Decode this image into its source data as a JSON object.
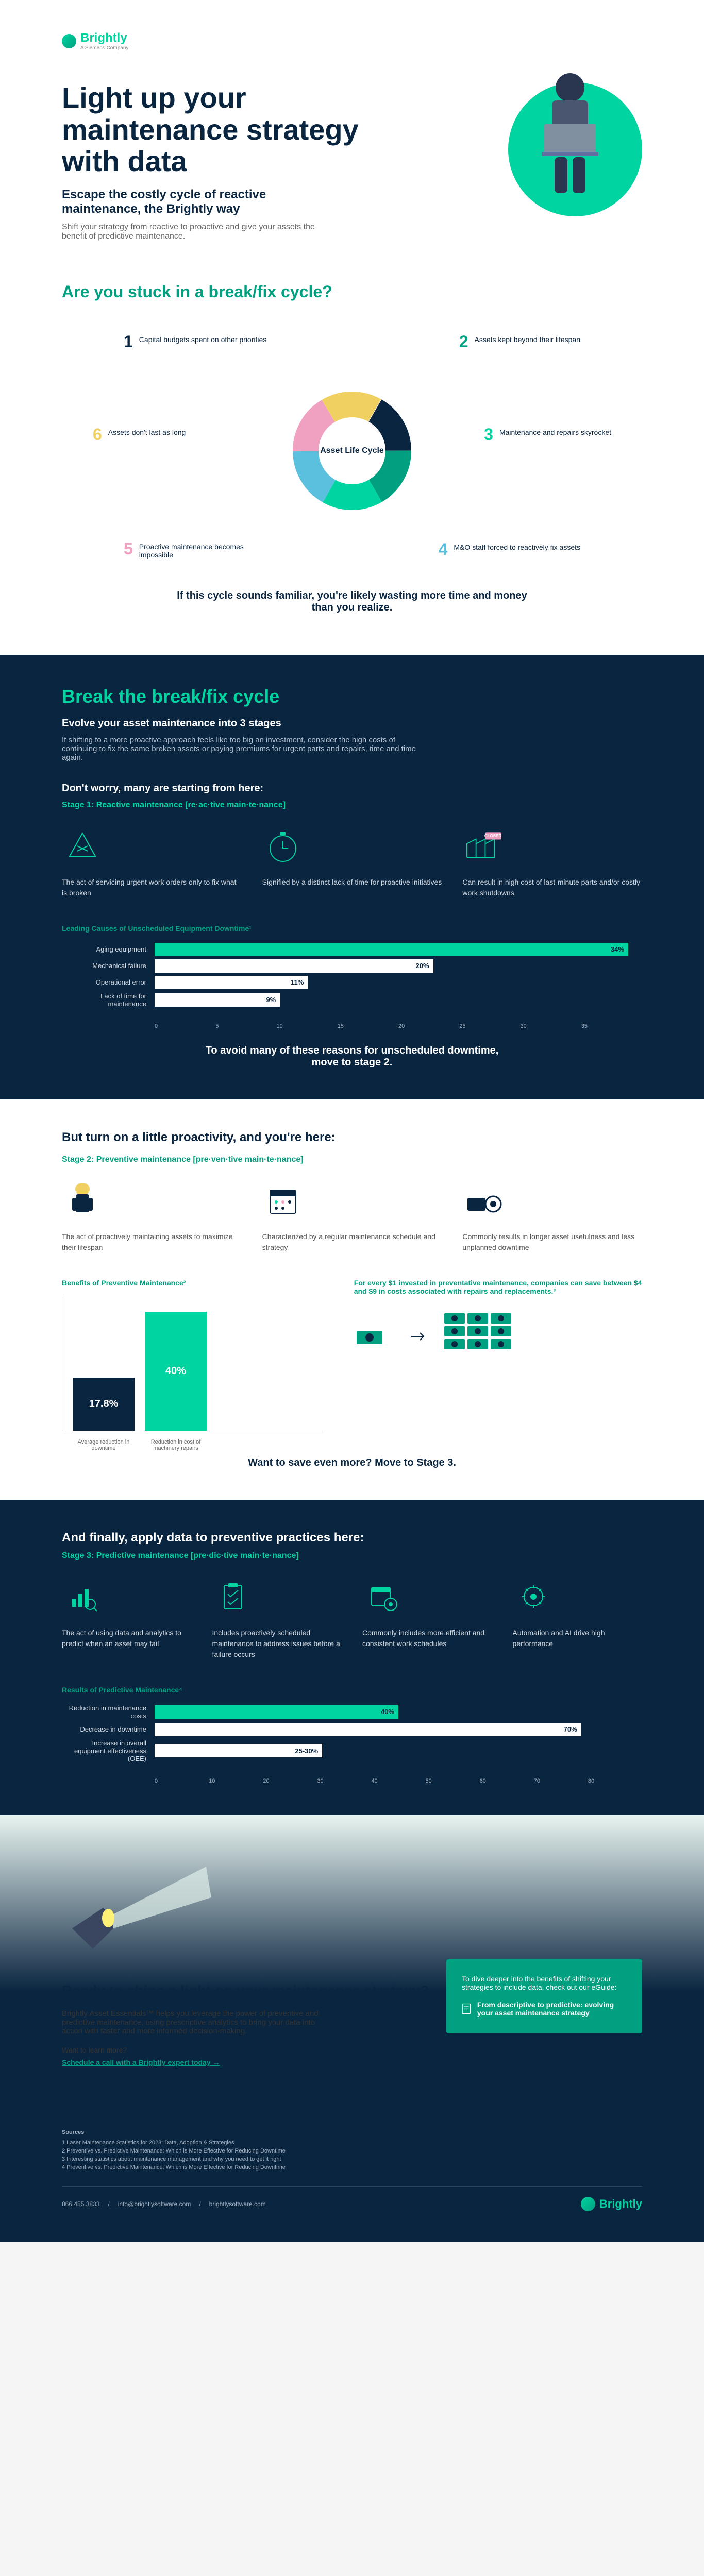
{
  "brand": {
    "name": "Brightly",
    "tagline": "A Siemens Company"
  },
  "hero": {
    "title": "Light up your maintenance strategy with data",
    "subtitle": "Escape the costly cycle of reactive maintenance, the Brightly way",
    "body": "Shift your strategy from reactive to proactive and give your assets the benefit of predictive maintenance."
  },
  "cycle": {
    "title": "Are you stuck in a break/fix cycle?",
    "center_label": "Asset Life Cycle",
    "items": [
      {
        "num": "1",
        "text": "Capital budgets spent on other priorities",
        "color": "#0a2540"
      },
      {
        "num": "2",
        "text": "Assets kept beyond their lifespan",
        "color": "#00a080"
      },
      {
        "num": "3",
        "text": "Maintenance and repairs skyrocket",
        "color": "#00d4a0"
      },
      {
        "num": "4",
        "text": "M&O staff forced to reactively fix assets",
        "color": "#5bc0de"
      },
      {
        "num": "5",
        "text": "Proactive maintenance becomes impossible",
        "color": "#f0a0c0"
      },
      {
        "num": "6",
        "text": "Assets don't last as long",
        "color": "#f0d060"
      }
    ],
    "footer": "If this cycle sounds familiar, you're likely wasting more time and money than you realize."
  },
  "stage1_intro": {
    "title": "Break the break/fix cycle",
    "subtitle": "Evolve your asset maintenance into 3 stages",
    "body": "If shifting to a more proactive approach feels like too big an investment, consider the high costs of continuing to fix the same broken assets or paying premiums for urgent parts and repairs, time and time again.",
    "worry_title": "Don't worry, many are starting from here:",
    "stage_label": "Stage 1: Reactive maintenance [re·ac·tive main·te·nance]"
  },
  "stage1_icons": [
    {
      "desc": "The act of servicing urgent work orders only to fix what is broken"
    },
    {
      "desc": "Signified by a distinct lack of time for proactive initiatives"
    },
    {
      "desc": "Can result in high cost of last-minute parts and/or costly work shutdowns"
    }
  ],
  "stage1_chart": {
    "title": "Leading Causes of Unscheduled Equipment Downtime¹",
    "bars": [
      {
        "label": "Aging equipment",
        "value": 34,
        "color": "#00d4a0"
      },
      {
        "label": "Mechanical failure",
        "value": 20,
        "color": "#ffffff"
      },
      {
        "label": "Operational error",
        "value": 11,
        "color": "#ffffff"
      },
      {
        "label": "Lack of time for maintenance",
        "value": 9,
        "color": "#ffffff"
      }
    ],
    "xmax": 35,
    "ticks": [
      "0",
      "5",
      "10",
      "15",
      "20",
      "25",
      "30",
      "35"
    ],
    "footer": "To avoid many of these reasons for unscheduled downtime, move to stage 2."
  },
  "stage2": {
    "title": "But turn on a little proactivity, and you're here:",
    "stage_label": "Stage 2: Preventive maintenance [pre·ven·tive main·te·nance]",
    "icons": [
      {
        "desc": "The act of proactively maintaining assets to maximize their lifespan"
      },
      {
        "desc": "Characterized by a regular maintenance schedule and strategy"
      },
      {
        "desc": "Commonly results in longer asset usefulness and less unplanned downtime"
      }
    ],
    "chart": {
      "title": "Benefits of Preventive Maintenance²",
      "bars": [
        {
          "label": "Average reduction in downtime",
          "value": 17.8,
          "display": "17.8%",
          "color": "#0a2540"
        },
        {
          "label": "Reduction in cost of machinery repairs",
          "value": 40,
          "display": "40%",
          "color": "#00d4a0"
        }
      ],
      "ymax": 45
    },
    "savings_text": "For every $1 invested in preventative maintenance, companies can save between $4 and $9 in costs associated with repairs and replacements.³",
    "footer": "Want to save even more? Move to Stage 3."
  },
  "stage3": {
    "title": "And finally, apply data to preventive practices here:",
    "stage_label": "Stage 3: Predictive maintenance [pre·dic·tive main·te·nance]",
    "icons": [
      {
        "desc": "The act of using data and analytics to predict when an asset may fail"
      },
      {
        "desc": "Includes proactively scheduled maintenance to address issues before a failure occurs"
      },
      {
        "desc": "Commonly includes more efficient and consistent work schedules"
      },
      {
        "desc": "Automation and AI drive high performance"
      }
    ],
    "chart": {
      "title": "Results of Predictive Maintenance⁴",
      "bars": [
        {
          "label": "Reduction in maintenance costs",
          "value": 40,
          "display": "40%",
          "color": "#00d4a0"
        },
        {
          "label": "Decrease in downtime",
          "value": 70,
          "display": "70%",
          "color": "#ffffff"
        },
        {
          "label": "Increase in overall equipment effectiveness (OEE)",
          "value": 27.5,
          "display": "25-30%",
          "color": "#ffffff"
        }
      ],
      "xmax": 80,
      "ticks": [
        "0",
        "10",
        "20",
        "30",
        "40",
        "50",
        "60",
        "70",
        "80"
      ]
    }
  },
  "cta": {
    "title": "Ready to shine a light on your maintenance strategy?",
    "body": "Brightly Asset Essentials™ helps you leverage the power of preventive and predictive maintenance, using prescriptive analytics to bring your data into action with faster and more informed decision-making.",
    "learn_more": "Want to learn more?",
    "link": "Schedule a call with a Brightly expert today →",
    "box_text": "To dive deeper into the benefits of shifting your strategies to include data, check out our eGuide:",
    "box_link": "From descriptive to predictive: evolving your asset maintenance strategy"
  },
  "footer": {
    "sources_title": "Sources",
    "sources": [
      "1  Laser Maintenance Statistics for 2023: Data, Adoption & Strategies",
      "2  Preventive vs. Predictive Maintenance: Which is More Effective for Reducing Downtime",
      "3  Interesting statistics about maintenance management and why you need to get it right",
      "4  Preventive vs. Predictive Maintenance: Which is More Effective for Reducing Downtime"
    ],
    "phone": "866.455.3833",
    "email": "info@brightlysoftware.com",
    "url": "brightlysoftware.com"
  }
}
